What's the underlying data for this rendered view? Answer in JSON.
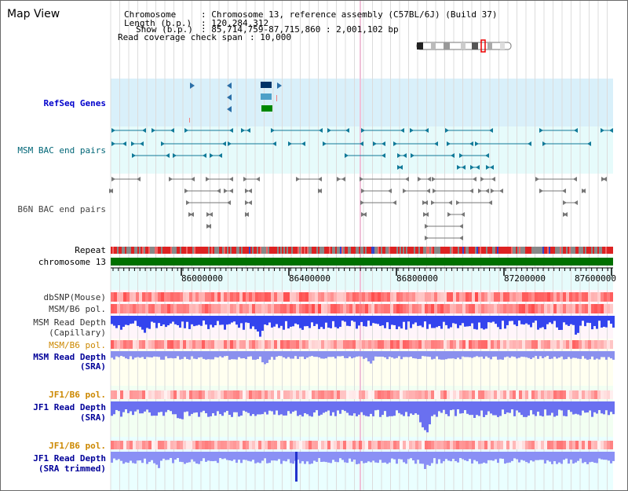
{
  "view_title": "Map View",
  "info": {
    "chromosome_label": "Chromosome",
    "chromosome_value": ": Chromosome 13, reference assembly (C57BL/6J) (Build 37)",
    "length_label": "Length (b.p.)",
    "length_value": ": 120,284,312",
    "show_label": "Show (b.p.)",
    "show_value": ": 85,714,759-87,715,860 : 2,001,102 bp",
    "coverage_label": "Read coverage check span",
    "coverage_value": ": 10,000"
  },
  "tracks": {
    "refseq": "RefSeq Genes",
    "msm_bac": "MSM BAC end pairs",
    "b6n_bac": "B6N BAC end pairs",
    "repeat": "Repeat",
    "chromosome": "chromosome 13",
    "dbsnp": "dbSNP(Mouse)",
    "msm_b6_pol": "MSM/B6 pol.",
    "msm_depth_cap_1": "MSM Read Depth",
    "msm_depth_cap_2": "(Capillary)",
    "msm_b6_pol_sra": "MSM/B6 pol.",
    "msm_depth_sra_1": "MSM Read Depth",
    "msm_depth_sra_2": "(SRA)",
    "jf1_b6_pol": "JF1/B6 pol.",
    "jf1_depth_sra_1": "JF1 Read Depth",
    "jf1_depth_sra_2": "(SRA)",
    "jf1_b6_pol_trim": "JF1/B6 pol.",
    "jf1_depth_trim_1": "JF1 Read Depth",
    "jf1_depth_trim_2": "(SRA trimmed)"
  },
  "ruler": {
    "ticks": [
      "86000000",
      "86400000",
      "86800000",
      "87200000",
      "87600000"
    ]
  },
  "colors": {
    "refseq_label": "#0000cc",
    "msm_bac_label": "#006677",
    "b6n_bac_label": "#444444",
    "pol_orange": "#cc8800",
    "depth_blue": "#000099",
    "chromosome_green": "#007000"
  }
}
